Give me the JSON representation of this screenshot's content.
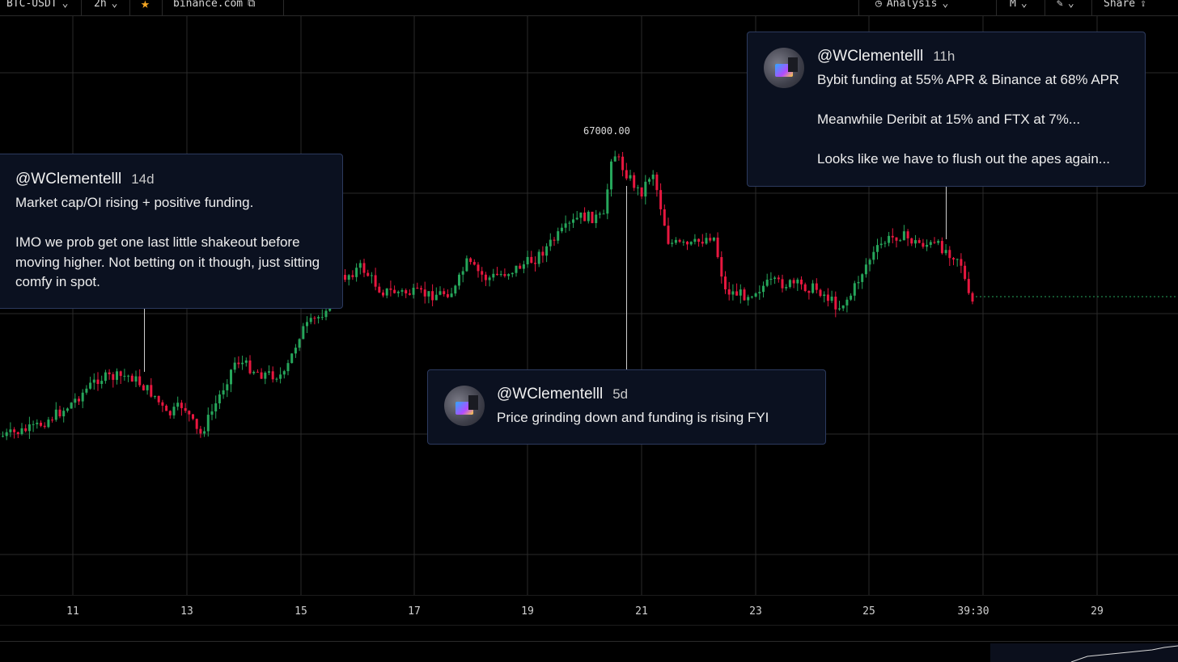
{
  "toolbar": {
    "symbol": "BTC-USDT",
    "interval": "2h",
    "exchange": "binance.com",
    "analysis_label": "Analysis",
    "mode_label": "M",
    "share_label": "Share",
    "colors": {
      "accent_star": "#f5a623"
    }
  },
  "chart_data": {
    "type": "candlestick",
    "price_high_label": "67000.00",
    "x_tick_labels": [
      "11",
      "13",
      "15",
      "17",
      "19",
      "21",
      "23",
      "25",
      "39:30",
      "29"
    ],
    "colors": {
      "up": "#26a65b",
      "down": "#e8173f",
      "price_line": "#26a65b",
      "grid": "#2a2a2a"
    },
    "grid": true,
    "current_price_line": "dotted"
  },
  "tweets": [
    {
      "handle": "@WClementelll",
      "age": "14d",
      "text": "Market cap/OI rising + positive funding.\n\nIMO we prob get one last little shakeout before moving higher. Not betting on it though, just sitting comfy in spot."
    },
    {
      "handle": "@WClementelll",
      "age": "5d",
      "text": "Price grinding down and funding is rising FYI"
    },
    {
      "handle": "@WClementelll",
      "age": "11h",
      "text": "Bybit funding at 55% APR & Binance at 68% APR\n\nMeanwhile Deribit at 15% and FTX at 7%...\n\nLooks like we have to flush out the apes again..."
    }
  ]
}
